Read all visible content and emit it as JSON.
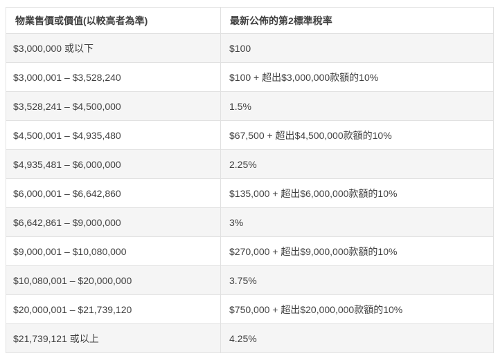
{
  "table": {
    "columns": [
      {
        "label": "物業售價或價值(以較高者為準)"
      },
      {
        "label": "最新公佈的第2標準稅率"
      }
    ],
    "rows": [
      [
        "$3,000,000 或以下",
        "$100"
      ],
      [
        "$3,000,001 – $3,528,240",
        "$100 + 超出$3,000,000款額的10%"
      ],
      [
        "$3,528,241 – $4,500,000",
        "1.5%"
      ],
      [
        "$4,500,001 – $4,935,480",
        "$67,500 + 超出$4,500,000款額的10%"
      ],
      [
        "$4,935,481 – $6,000,000",
        "2.25%"
      ],
      [
        "$6,000,001 – $6,642,860",
        "$135,000 + 超出$6,000,000款額的10%"
      ],
      [
        "$6,642,861 – $9,000,000",
        "3%"
      ],
      [
        "$9,000,001 – $10,080,000",
        "$270,000 + 超出$9,000,000款額的10%"
      ],
      [
        "$10,080,001 – $20,000,000",
        "3.75%"
      ],
      [
        "$20,000,001 – $21,739,120",
        "$750,000 + 超出$20,000,000款額的10%"
      ],
      [
        "$21,739,121 或以上",
        "4.25%"
      ]
    ],
    "colors": {
      "row_alt_bg": "#f5f5f5",
      "row_bg": "#ffffff",
      "border": "#e1e1e1",
      "text": "#404040"
    }
  }
}
